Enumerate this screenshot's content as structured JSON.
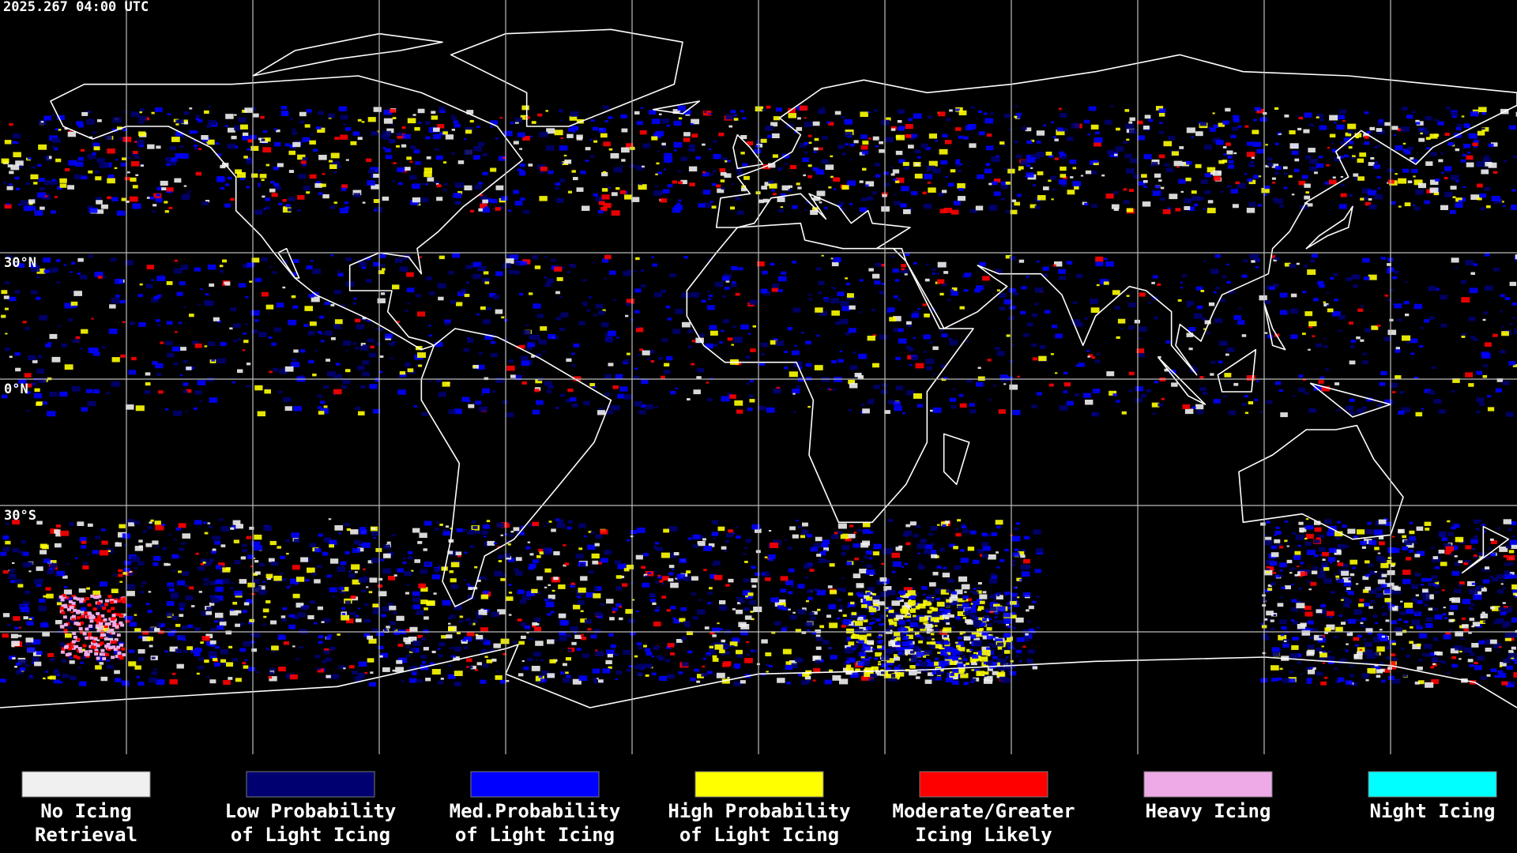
{
  "timestamp": "2025.267 04:00 UTC",
  "latitude_labels": [
    "30°N",
    "0°N",
    "30°S"
  ],
  "legend": [
    {
      "label_lines": [
        "No Icing",
        "Retrieval"
      ],
      "color": "#f0f0f0"
    },
    {
      "label_lines": [
        "Low Probability",
        "of Light Icing"
      ],
      "color": "#000070"
    },
    {
      "label_lines": [
        "Med.Probability",
        "of Light Icing"
      ],
      "color": "#0000ff"
    },
    {
      "label_lines": [
        "High Probability",
        "of Light Icing"
      ],
      "color": "#ffff00"
    },
    {
      "label_lines": [
        "Moderate/Greater",
        "Icing Likely"
      ],
      "color": "#ff0000"
    },
    {
      "label_lines": [
        "Heavy Icing"
      ],
      "color": "#eeaae6"
    },
    {
      "label_lines": [
        "Night Icing"
      ],
      "color": "#00ffff"
    }
  ]
}
